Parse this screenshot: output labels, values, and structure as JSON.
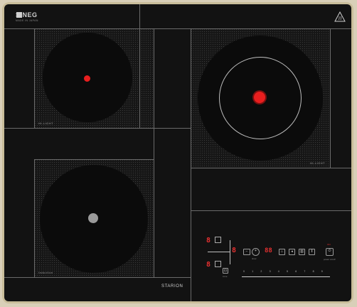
{
  "brand": {
    "name": "SINEG",
    "tagline": "MADE IN JAPAN"
  },
  "warning": {
    "icon": "hot-surface-warning-icon",
    "text": "warning"
  },
  "zones": {
    "top_left": {
      "label": "HI-LIGHT",
      "indicator_color": "#e81e1e"
    },
    "top_right": {
      "label": "HI-LIGHT",
      "indicator_color": "#e81e1e"
    },
    "bottom_left": {
      "label": "Induction",
      "indicator_color": "#9a9a9a"
    }
  },
  "model": "STARION",
  "control_panel": {
    "display_top": "8",
    "display_bottom": "8",
    "display_center": "8",
    "timer_display": "88",
    "keys": {
      "minus_icon": "minus-icon",
      "plus_icon": "plus-icon",
      "lock_icon": "lock-icon",
      "boost_icon": "boost-icon",
      "keep_warm_icon": "keep-warm-icon",
      "pause_icon": "pause-icon",
      "power_icon": "power-icon",
      "zone_select_icon": "zone-select-icon"
    },
    "small_labels": {
      "timer": "timer",
      "zone": "zone",
      "on": "ON",
      "power": "power on/off"
    },
    "slider_numbers": [
      "0",
      "1",
      "2",
      "3",
      "4",
      "5",
      "6",
      "7",
      "8",
      "9"
    ]
  }
}
